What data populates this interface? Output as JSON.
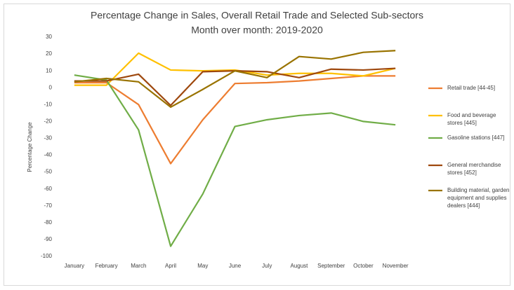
{
  "chart_data": {
    "type": "line",
    "title": "Percentage Change in Sales, Overall Retail Trade and Selected Sub-sectors",
    "subtitle": "Month over month: 2019-2020",
    "y_label": "Percentage Change",
    "categories": [
      "January",
      "February",
      "March",
      "April",
      "May",
      "June",
      "July",
      "August",
      "September",
      "October",
      "November"
    ],
    "series": [
      {
        "name": "Retail trade  [44-45]",
        "color": "#ED7D31",
        "values": [
          3,
          3,
          -10,
          -45,
          -19,
          2.5,
          3,
          4,
          5.5,
          7,
          7
        ]
      },
      {
        "name": "Food and beverage stores  [445]",
        "color": "#FFC000",
        "values": [
          1.5,
          1.5,
          20.5,
          10.5,
          10,
          10.5,
          7.5,
          8.5,
          8.5,
          7,
          11.5
        ]
      },
      {
        "name": "Gasoline stations  [447]",
        "color": "#70AD47",
        "values": [
          7.5,
          4.5,
          -25,
          -94,
          -63,
          -23,
          -19,
          -16.5,
          -15,
          -20,
          -22
        ]
      },
      {
        "name": "General merchandise stores  [452]",
        "color": "#9E480E",
        "values": [
          4,
          4,
          8,
          -10.5,
          9.5,
          10,
          9.5,
          6,
          11,
          10.5,
          11.5
        ]
      },
      {
        "name": "Building material, garden equipment and supplies dealers  [444]",
        "color": "#997300",
        "values": [
          3.5,
          5.5,
          3.5,
          -11.5,
          -1,
          10,
          6,
          18.5,
          17,
          21,
          22
        ]
      }
    ],
    "ylim": [
      -100,
      30
    ],
    "yticks": [
      -100,
      -90,
      -80,
      -70,
      -60,
      -50,
      -40,
      -30,
      -20,
      -10,
      0,
      10,
      20,
      30
    ],
    "grid": false,
    "legend": "right"
  }
}
